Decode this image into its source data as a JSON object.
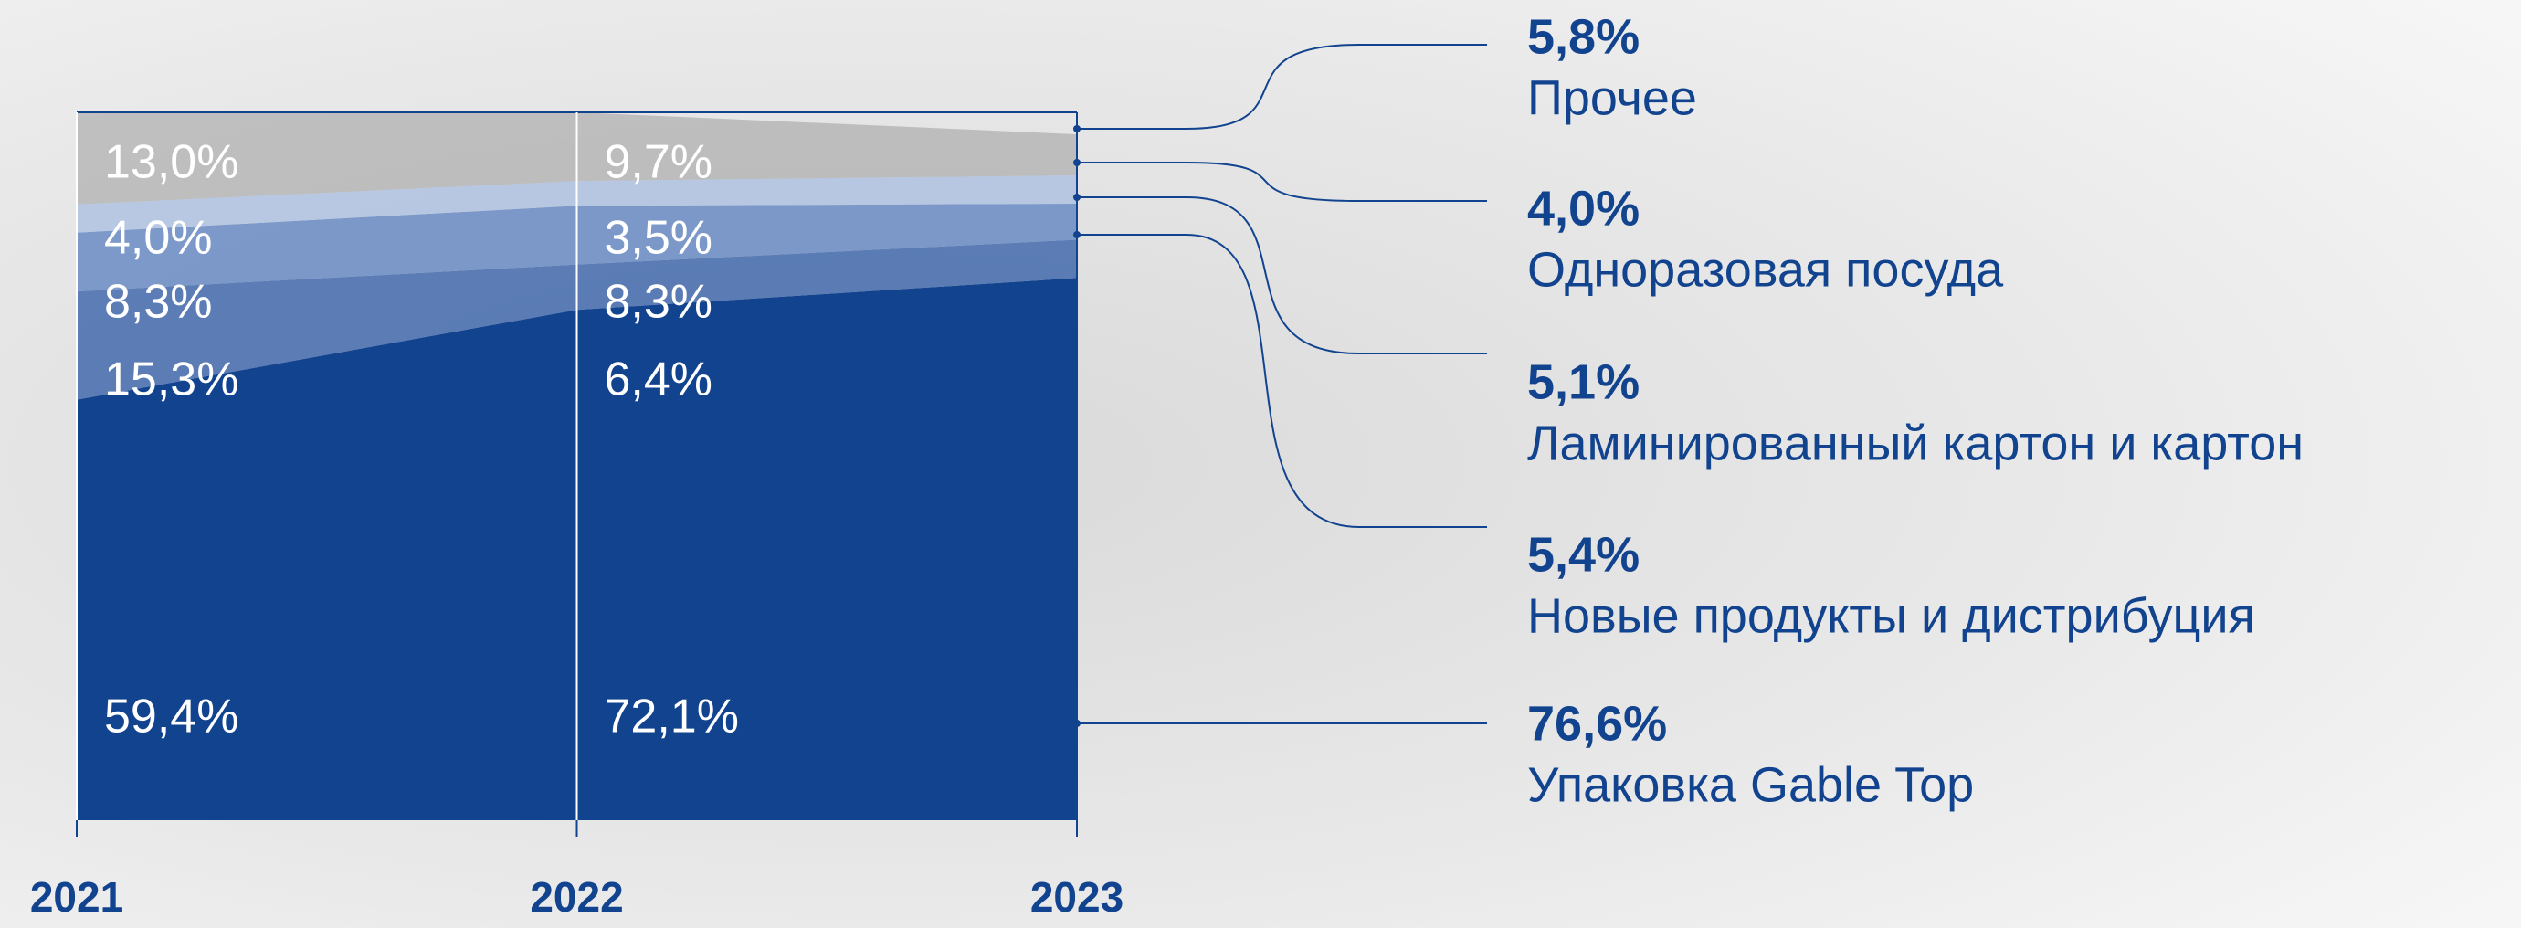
{
  "chart_data": {
    "type": "area",
    "x": [
      2021,
      2022,
      2023
    ],
    "xlim": [
      2021,
      2023
    ],
    "xticks": [
      2021,
      2022,
      2023
    ],
    "ylim": [
      0,
      100
    ],
    "series": [
      {
        "name": "Упаковка Gable Top",
        "color": "#12438f",
        "values": [
          59.4,
          72.1,
          76.6
        ],
        "value_labels": [
          "59,4%",
          "72,1%",
          "76,6%"
        ]
      },
      {
        "name": "Новые продукты и дистрибуция",
        "color": "#2d5aa6",
        "values": [
          15.3,
          6.4,
          5.4
        ],
        "value_labels": [
          "15,3%",
          "6,4%",
          "5,4%"
        ]
      },
      {
        "name": "Ламинированный картон и картон",
        "color": "#5a7fbf",
        "values": [
          8.3,
          8.3,
          5.1
        ],
        "value_labels": [
          "8,3%",
          "8,3%",
          "5,1%"
        ]
      },
      {
        "name": "Одноразовая посуда",
        "color": "#a8bde2",
        "values": [
          4.0,
          3.5,
          4.0
        ],
        "value_labels": [
          "4,0%",
          "3,5%",
          "4,0%"
        ]
      },
      {
        "name": "Прочее",
        "color": "#9c9c9c",
        "values": [
          13.0,
          9.7,
          5.8
        ],
        "value_labels": [
          "13,0%",
          "9,7%",
          "5,8%"
        ]
      }
    ]
  }
}
